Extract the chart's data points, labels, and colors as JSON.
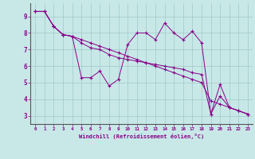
{
  "xlabel": "Windchill (Refroidissement éolien,°C)",
  "background_color": "#c8e8e8",
  "grid_color": "#a0c8c8",
  "line_color": "#880088",
  "x_hours": [
    0,
    1,
    2,
    3,
    4,
    5,
    6,
    7,
    8,
    9,
    10,
    11,
    12,
    13,
    14,
    15,
    16,
    17,
    18,
    19,
    20,
    21,
    22,
    23
  ],
  "series1": [
    9.3,
    9.3,
    8.4,
    7.9,
    7.8,
    5.3,
    5.3,
    5.7,
    4.8,
    5.2,
    7.3,
    8.0,
    8.0,
    7.6,
    8.6,
    8.0,
    7.6,
    8.1,
    7.4,
    3.1,
    4.9,
    3.5,
    3.3,
    3.1
  ],
  "series2": [
    9.3,
    9.3,
    8.4,
    7.9,
    7.8,
    7.4,
    7.1,
    7.0,
    6.7,
    6.5,
    6.4,
    6.3,
    6.2,
    6.1,
    6.0,
    5.9,
    5.8,
    5.6,
    5.5,
    3.1,
    4.2,
    3.5,
    3.3,
    3.1
  ],
  "series3": [
    9.3,
    9.3,
    8.4,
    7.9,
    7.8,
    7.6,
    7.4,
    7.2,
    7.0,
    6.8,
    6.6,
    6.4,
    6.2,
    6.0,
    5.8,
    5.6,
    5.4,
    5.2,
    5.0,
    3.9,
    3.7,
    3.5,
    3.3,
    3.1
  ],
  "ylim": [
    2.5,
    9.8
  ],
  "yticks": [
    3,
    4,
    5,
    6,
    7,
    8,
    9
  ],
  "xticks": [
    0,
    1,
    2,
    3,
    4,
    5,
    6,
    7,
    8,
    9,
    10,
    11,
    12,
    13,
    14,
    15,
    16,
    17,
    18,
    19,
    20,
    21,
    22,
    23
  ]
}
